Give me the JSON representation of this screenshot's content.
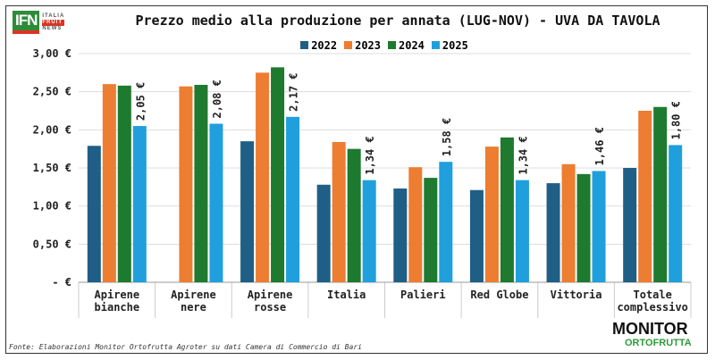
{
  "logo": {
    "main": "IFN",
    "line1": "ITALIA",
    "line2": "FRUIT",
    "line3": "NEWS"
  },
  "source": "Fonte: Elaborazioni Monitor Ortofrutta Agroter su dati Camera di Commercio di Bari",
  "brand": {
    "line1": "MONITOR",
    "line2": "ORTOFRUTTA"
  },
  "chart_data": {
    "type": "bar",
    "title": "Prezzo medio alla produzione per annata (LUG-NOV) - UVA DA TAVOLA",
    "categories": [
      [
        "Apirene",
        "bianche"
      ],
      [
        "Apirene",
        "nere"
      ],
      [
        "Apirene",
        "rosse"
      ],
      [
        "Italia"
      ],
      [
        "Palieri"
      ],
      [
        "Red Globe"
      ],
      [
        "Vittoria"
      ],
      [
        "Totale",
        "complessivo"
      ]
    ],
    "series": [
      {
        "name": "2022",
        "color": "#1f5f86",
        "values": [
          1.79,
          null,
          1.85,
          1.28,
          1.23,
          1.21,
          1.3,
          1.5
        ]
      },
      {
        "name": "2023",
        "color": "#ed7d31",
        "values": [
          2.6,
          2.57,
          2.75,
          1.84,
          1.51,
          1.78,
          1.55,
          2.25
        ]
      },
      {
        "name": "2024",
        "color": "#1e7a2e",
        "values": [
          2.58,
          2.59,
          2.82,
          1.75,
          1.37,
          1.9,
          1.42,
          2.3
        ]
      },
      {
        "name": "2025",
        "color": "#1fa0dc",
        "values": [
          2.05,
          2.08,
          2.17,
          1.34,
          1.58,
          1.34,
          1.46,
          1.8
        ]
      }
    ],
    "data_labels": [
      "2,05 €",
      "2,08 €",
      "2,17 €",
      "1,34 €",
      "1,58 €",
      "1,34 €",
      "1,46 €",
      "1,80 €"
    ],
    "yticks": [
      "-   €",
      "0,50 €",
      "1,00 €",
      "1,50 €",
      "2,00 €",
      "2,50 €",
      "3,00 €"
    ],
    "ylim": [
      0,
      3
    ],
    "legend": "top"
  }
}
